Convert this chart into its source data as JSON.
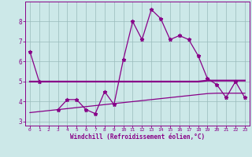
{
  "x": [
    0,
    1,
    2,
    3,
    4,
    5,
    6,
    7,
    8,
    9,
    10,
    11,
    12,
    13,
    14,
    15,
    16,
    17,
    18,
    19,
    20,
    21,
    22,
    23
  ],
  "line_main": [
    6.5,
    5.0,
    null,
    3.6,
    4.1,
    4.1,
    3.6,
    3.4,
    4.5,
    3.85,
    6.1,
    8.0,
    7.1,
    8.6,
    8.15,
    7.1,
    7.3,
    7.1,
    6.3,
    5.15,
    4.85,
    4.2,
    5.0,
    4.2
  ],
  "line_upper": [
    5.0,
    5.0,
    5.0,
    5.0,
    5.0,
    5.0,
    5.0,
    5.0,
    5.0,
    5.0,
    5.0,
    5.0,
    5.0,
    5.0,
    5.0,
    5.0,
    5.0,
    5.0,
    5.0,
    5.05,
    5.05,
    5.05,
    5.05,
    5.05
  ],
  "line_lower": [
    3.45,
    3.5,
    3.55,
    3.6,
    3.65,
    3.7,
    3.75,
    3.8,
    3.85,
    3.9,
    3.95,
    4.0,
    4.05,
    4.1,
    4.15,
    4.2,
    4.25,
    4.3,
    4.35,
    4.4,
    4.42,
    4.42,
    4.42,
    4.42
  ],
  "bg_color": "#cce8e8",
  "line_color": "#880088",
  "grid_color": "#99bbbb",
  "xlabel": "Windchill (Refroidissement éolien,°C)",
  "ylim": [
    2.8,
    9.0
  ],
  "xlim": [
    -0.5,
    23.5
  ],
  "yticks": [
    3,
    4,
    5,
    6,
    7,
    8
  ],
  "xticks": [
    0,
    1,
    2,
    3,
    4,
    5,
    6,
    7,
    8,
    9,
    10,
    11,
    12,
    13,
    14,
    15,
    16,
    17,
    18,
    19,
    20,
    21,
    22,
    23
  ]
}
